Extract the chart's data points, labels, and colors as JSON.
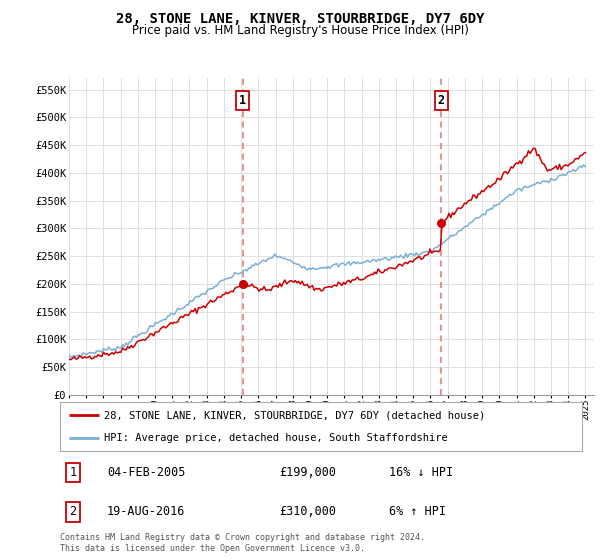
{
  "title": "28, STONE LANE, KINVER, STOURBRIDGE, DY7 6DY",
  "subtitle": "Price paid vs. HM Land Registry's House Price Index (HPI)",
  "hpi_color": "#7bafd4",
  "sale_color": "#cc0000",
  "dashed_color": "#e87070",
  "ylim": [
    0,
    570000
  ],
  "yticks": [
    0,
    50000,
    100000,
    150000,
    200000,
    250000,
    300000,
    350000,
    400000,
    450000,
    500000,
    550000
  ],
  "ytick_labels": [
    "£0",
    "£50K",
    "£100K",
    "£150K",
    "£200K",
    "£250K",
    "£300K",
    "£350K",
    "£400K",
    "£450K",
    "£500K",
    "£550K"
  ],
  "sale_dates": [
    2005.09,
    2016.63
  ],
  "sale_prices": [
    199000,
    310000
  ],
  "sale_labels": [
    "1",
    "2"
  ],
  "legend_line1": "28, STONE LANE, KINVER, STOURBRIDGE, DY7 6DY (detached house)",
  "legend_line2": "HPI: Average price, detached house, South Staffordshire",
  "table_rows": [
    {
      "num": "1",
      "date": "04-FEB-2005",
      "price": "£199,000",
      "hpi": "16% ↓ HPI"
    },
    {
      "num": "2",
      "date": "19-AUG-2016",
      "price": "£310,000",
      "hpi": "6% ↑ HPI"
    }
  ],
  "footer": "Contains HM Land Registry data © Crown copyright and database right 2024.\nThis data is licensed under the Open Government Licence v3.0.",
  "bg_color": "#ffffff",
  "grid_color": "#e0e0e0"
}
